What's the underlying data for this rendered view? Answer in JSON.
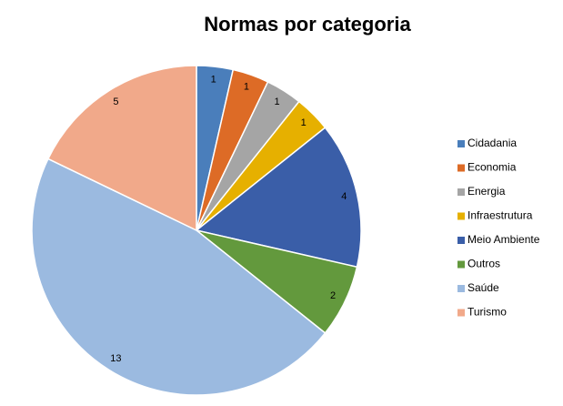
{
  "chart_data": {
    "type": "pie",
    "title": "Normas por categoria",
    "categories": [
      "Cidadania",
      "Economia",
      "Energia",
      "Infraestrutura",
      "Meio Ambiente",
      "Outros",
      "Saúde",
      "Turismo"
    ],
    "values": [
      1,
      1,
      1,
      1,
      4,
      2,
      13,
      5
    ],
    "colors": [
      "#4a7ebb",
      "#dd6b26",
      "#a5a5a5",
      "#e6b000",
      "#3a5ea8",
      "#63993d",
      "#9bbae0",
      "#f1a98a"
    ],
    "legend": "right"
  }
}
